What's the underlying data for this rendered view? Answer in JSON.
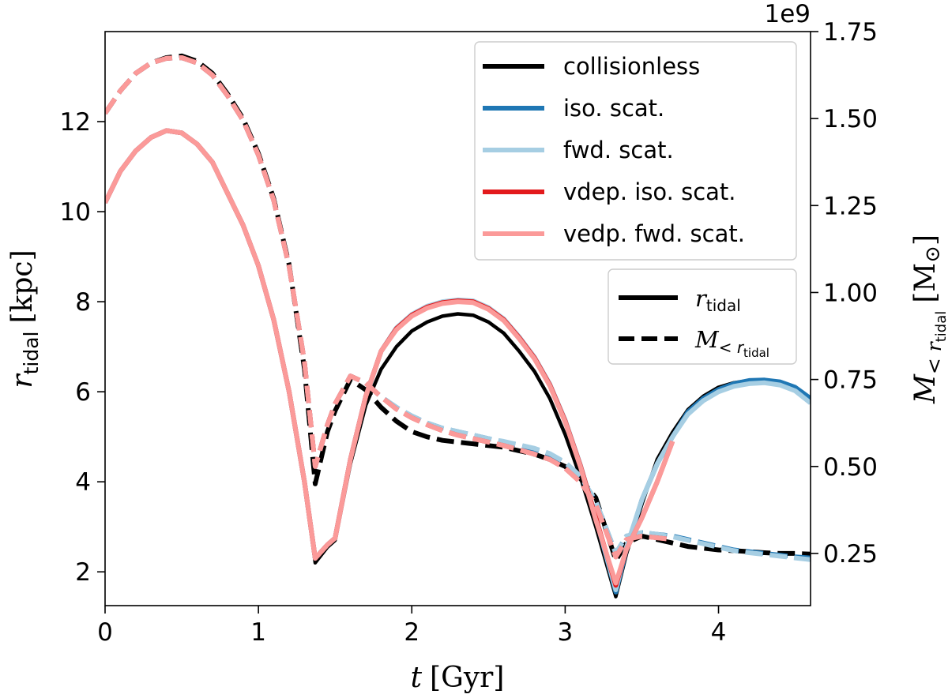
{
  "chart_data": {
    "type": "line",
    "xlabel": {
      "var": "t",
      "unit": "[Gyr]"
    },
    "ylabel_left": {
      "var": "r",
      "sub": "tidal",
      "unit": "[kpc]"
    },
    "ylabel_right": {
      "var": "M",
      "sub1": "< r",
      "sub2": "tidal",
      "unit_open": "[M",
      "unit_sym": "⊙",
      "unit_close": "]"
    },
    "xlim": [
      0,
      4.6
    ],
    "ylim_left": [
      1.25,
      14.0
    ],
    "ylim_right": [
      0.1,
      1.75
    ],
    "right_offset_text": "1e9",
    "x_ticks": [
      0,
      1,
      2,
      3,
      4
    ],
    "x_tick_labels": [
      "0",
      "1",
      "2",
      "3",
      "4"
    ],
    "y_left_ticks": [
      2,
      4,
      6,
      8,
      10,
      12
    ],
    "y_left_tick_labels": [
      "2",
      "4",
      "6",
      "8",
      "10",
      "12"
    ],
    "y_right_ticks": [
      0.25,
      0.5,
      0.75,
      1.0,
      1.25,
      1.5,
      1.75
    ],
    "y_right_tick_labels": [
      "0.25",
      "0.50",
      "0.75",
      "1.00",
      "1.25",
      "1.50",
      "1.75"
    ],
    "legend_models": [
      {
        "label": "collisionless",
        "color": "#000000"
      },
      {
        "label": "iso. scat.",
        "color": "#1f77b4"
      },
      {
        "label": "fwd. scat.",
        "color": "#a6cee3"
      },
      {
        "label": "vdep. iso. scat.",
        "color": "#e31a1c"
      },
      {
        "label": "vedp. fwd. scat.",
        "color": "#fb9a99"
      }
    ],
    "legend_styles": [
      {
        "label_var": "r",
        "label_sub": "tidal",
        "style": "solid"
      },
      {
        "label_var": "M",
        "label_sub1": "< r",
        "label_sub2": "tidal",
        "style": "dashed"
      }
    ],
    "series": [
      {
        "name": "collisionless r_tidal",
        "axis": "left",
        "style": "solid",
        "color": "#000000",
        "x": [
          0,
          0.1,
          0.2,
          0.3,
          0.4,
          0.5,
          0.6,
          0.7,
          0.8,
          0.9,
          1.0,
          1.1,
          1.2,
          1.3,
          1.37,
          1.45,
          1.5,
          1.6,
          1.7,
          1.8,
          1.9,
          2.0,
          2.1,
          2.2,
          2.3,
          2.4,
          2.5,
          2.6,
          2.7,
          2.8,
          2.9,
          3.0,
          3.1,
          3.2,
          3.33,
          3.4,
          3.5,
          3.6,
          3.7,
          3.8,
          3.9,
          4.0,
          4.1,
          4.2,
          4.3,
          4.4,
          4.5,
          4.6
        ],
        "y": [
          10.2,
          10.9,
          11.35,
          11.65,
          11.8,
          11.75,
          11.5,
          11.1,
          10.4,
          9.7,
          8.8,
          7.6,
          6.0,
          4.0,
          2.2,
          2.55,
          2.7,
          4.4,
          5.7,
          6.5,
          7.0,
          7.35,
          7.55,
          7.68,
          7.73,
          7.7,
          7.55,
          7.3,
          6.9,
          6.45,
          5.85,
          5.05,
          4.1,
          3.0,
          1.45,
          2.4,
          3.5,
          4.5,
          5.1,
          5.6,
          5.9,
          6.1,
          6.2,
          6.25,
          6.25,
          6.2,
          6.05,
          5.8
        ]
      },
      {
        "name": "collisionless M_<r_tidal",
        "axis": "right",
        "style": "dashed",
        "color": "#000000",
        "x": [
          0,
          0.1,
          0.2,
          0.3,
          0.4,
          0.5,
          0.6,
          0.7,
          0.8,
          0.9,
          1.0,
          1.1,
          1.2,
          1.3,
          1.37,
          1.45,
          1.5,
          1.6,
          1.7,
          1.8,
          1.9,
          2.0,
          2.1,
          2.2,
          2.3,
          2.4,
          2.5,
          2.6,
          2.7,
          2.8,
          2.9,
          3.0,
          3.1,
          3.2,
          3.33,
          3.4,
          3.5,
          3.6,
          3.7,
          3.8,
          3.9,
          4.0,
          4.1,
          4.2,
          4.3,
          4.4,
          4.5,
          4.6
        ],
        "y": [
          1.515,
          1.58,
          1.63,
          1.66,
          1.675,
          1.68,
          1.665,
          1.63,
          1.57,
          1.5,
          1.4,
          1.27,
          1.08,
          0.78,
          0.45,
          0.6,
          0.66,
          0.75,
          0.72,
          0.67,
          0.63,
          0.6,
          0.585,
          0.575,
          0.57,
          0.565,
          0.56,
          0.555,
          0.545,
          0.535,
          0.52,
          0.5,
          0.465,
          0.41,
          0.23,
          0.28,
          0.3,
          0.29,
          0.28,
          0.27,
          0.265,
          0.26,
          0.258,
          0.255,
          0.252,
          0.25,
          0.25,
          0.248
        ]
      },
      {
        "name": "iso. scat. r_tidal",
        "axis": "left",
        "style": "solid",
        "color": "#1f77b4",
        "x": [
          0,
          0.1,
          0.2,
          0.3,
          0.4,
          0.5,
          0.6,
          0.7,
          0.8,
          0.9,
          1.0,
          1.1,
          1.2,
          1.3,
          1.37,
          1.45,
          1.5,
          1.6,
          1.7,
          1.8,
          1.9,
          2.0,
          2.1,
          2.2,
          2.3,
          2.4,
          2.5,
          2.6,
          2.7,
          2.8,
          2.9,
          3.0,
          3.1,
          3.2,
          3.33,
          3.4,
          3.5,
          3.6,
          3.7,
          3.8,
          3.9,
          4.0,
          4.1,
          4.2,
          4.3,
          4.4,
          4.5,
          4.6
        ],
        "y": [
          10.2,
          10.9,
          11.35,
          11.65,
          11.8,
          11.75,
          11.5,
          11.1,
          10.4,
          9.7,
          8.8,
          7.6,
          6.0,
          4.0,
          2.3,
          2.6,
          2.75,
          4.5,
          5.9,
          6.9,
          7.4,
          7.7,
          7.88,
          7.98,
          8.02,
          8.0,
          7.85,
          7.6,
          7.2,
          6.75,
          6.15,
          5.35,
          4.35,
          3.2,
          1.55,
          2.5,
          3.6,
          4.4,
          5.0,
          5.55,
          5.85,
          6.05,
          6.18,
          6.25,
          6.26,
          6.22,
          6.1,
          5.85
        ]
      },
      {
        "name": "iso. scat. M_<r_tidal",
        "axis": "right",
        "style": "dashed",
        "color": "#1f77b4",
        "x": [
          0,
          0.1,
          0.2,
          0.3,
          0.4,
          0.5,
          0.6,
          0.7,
          0.8,
          0.9,
          1.0,
          1.1,
          1.2,
          1.3,
          1.37,
          1.45,
          1.5,
          1.6,
          1.7,
          1.8,
          1.9,
          2.0,
          2.1,
          2.2,
          2.3,
          2.4,
          2.5,
          2.6,
          2.7,
          2.8,
          2.9,
          3.0,
          3.1,
          3.2,
          3.33,
          3.4,
          3.5,
          3.6,
          3.7,
          3.8,
          3.9,
          4.0,
          4.1,
          4.2,
          4.3,
          4.4,
          4.5,
          4.6
        ],
        "y": [
          1.515,
          1.58,
          1.63,
          1.66,
          1.673,
          1.675,
          1.66,
          1.625,
          1.565,
          1.495,
          1.395,
          1.265,
          1.075,
          0.8,
          0.5,
          0.62,
          0.68,
          0.76,
          0.74,
          0.7,
          0.67,
          0.645,
          0.625,
          0.61,
          0.6,
          0.59,
          0.58,
          0.57,
          0.56,
          0.55,
          0.535,
          0.51,
          0.47,
          0.4,
          0.25,
          0.3,
          0.31,
          0.305,
          0.3,
          0.29,
          0.28,
          0.27,
          0.26,
          0.255,
          0.25,
          0.245,
          0.24,
          0.237
        ]
      },
      {
        "name": "fwd. scat. r_tidal",
        "axis": "left",
        "style": "solid",
        "color": "#a6cee3",
        "x": [
          0,
          0.1,
          0.2,
          0.3,
          0.4,
          0.5,
          0.6,
          0.7,
          0.8,
          0.9,
          1.0,
          1.1,
          1.2,
          1.3,
          1.37,
          1.45,
          1.5,
          1.6,
          1.7,
          1.8,
          1.9,
          2.0,
          2.1,
          2.2,
          2.3,
          2.4,
          2.5,
          2.6,
          2.7,
          2.8,
          2.9,
          3.0,
          3.1,
          3.2,
          3.33,
          3.4,
          3.5,
          3.6,
          3.7,
          3.8,
          3.9,
          4.0,
          4.1,
          4.2,
          4.3,
          4.4,
          4.5,
          4.6
        ],
        "y": [
          10.2,
          10.9,
          11.35,
          11.65,
          11.8,
          11.75,
          11.5,
          11.1,
          10.4,
          9.7,
          8.8,
          7.6,
          6.0,
          4.0,
          2.3,
          2.6,
          2.75,
          4.5,
          5.9,
          6.9,
          7.42,
          7.72,
          7.9,
          8.0,
          8.04,
          8.02,
          7.87,
          7.62,
          7.22,
          6.77,
          6.17,
          5.37,
          4.37,
          3.2,
          1.6,
          2.55,
          3.6,
          4.4,
          5.0,
          5.5,
          5.8,
          6.0,
          6.12,
          6.18,
          6.2,
          6.15,
          6.02,
          5.75
        ]
      },
      {
        "name": "fwd. scat. M_<r_tidal",
        "axis": "right",
        "style": "dashed",
        "color": "#a6cee3",
        "x": [
          0,
          0.1,
          0.2,
          0.3,
          0.4,
          0.5,
          0.6,
          0.7,
          0.8,
          0.9,
          1.0,
          1.1,
          1.2,
          1.3,
          1.37,
          1.45,
          1.5,
          1.6,
          1.7,
          1.8,
          1.9,
          2.0,
          2.1,
          2.2,
          2.3,
          2.4,
          2.5,
          2.6,
          2.7,
          2.8,
          2.9,
          3.0,
          3.1,
          3.2,
          3.33,
          3.4,
          3.5,
          3.6,
          3.7,
          3.8,
          3.9,
          4.0,
          4.1,
          4.2,
          4.3,
          4.4,
          4.5,
          4.6
        ],
        "y": [
          1.515,
          1.58,
          1.63,
          1.66,
          1.673,
          1.675,
          1.66,
          1.625,
          1.565,
          1.495,
          1.395,
          1.265,
          1.075,
          0.8,
          0.5,
          0.62,
          0.68,
          0.76,
          0.74,
          0.7,
          0.67,
          0.645,
          0.625,
          0.61,
          0.6,
          0.59,
          0.58,
          0.572,
          0.562,
          0.552,
          0.537,
          0.512,
          0.472,
          0.4,
          0.25,
          0.3,
          0.31,
          0.305,
          0.298,
          0.288,
          0.278,
          0.268,
          0.258,
          0.252,
          0.247,
          0.242,
          0.237,
          0.232
        ]
      },
      {
        "name": "vdep. iso. scat. r_tidal",
        "axis": "left",
        "style": "solid",
        "color": "#e31a1c",
        "x": [
          0,
          0.1,
          0.2,
          0.3,
          0.4,
          0.5,
          0.6,
          0.7,
          0.8,
          0.9,
          1.0,
          1.1,
          1.2,
          1.3,
          1.37,
          1.45,
          1.5,
          1.6,
          1.7,
          1.8,
          1.9,
          2.0,
          2.1,
          2.2,
          2.3,
          2.4,
          2.5,
          2.6,
          2.7,
          2.8,
          2.9,
          3.0,
          3.1,
          3.2,
          3.33,
          3.4,
          3.5,
          3.6,
          3.7
        ],
        "y": [
          10.2,
          10.9,
          11.35,
          11.65,
          11.8,
          11.75,
          11.5,
          11.1,
          10.4,
          9.7,
          8.8,
          7.6,
          6.0,
          4.0,
          2.3,
          2.6,
          2.75,
          4.5,
          5.9,
          6.9,
          7.4,
          7.7,
          7.88,
          7.98,
          8.02,
          8.0,
          7.85,
          7.6,
          7.2,
          6.75,
          6.15,
          5.35,
          4.35,
          3.2,
          1.7,
          2.5,
          3.2,
          4.0,
          4.9
        ]
      },
      {
        "name": "vdep. iso. scat. M_<r_tidal",
        "axis": "right",
        "style": "dashed",
        "color": "#e31a1c",
        "x": [
          0,
          0.1,
          0.2,
          0.3,
          0.4,
          0.5,
          0.6,
          0.7,
          0.8,
          0.9,
          1.0,
          1.1,
          1.2,
          1.3,
          1.37,
          1.45,
          1.5,
          1.6,
          1.7,
          1.8,
          1.9,
          2.0,
          2.1,
          2.2,
          2.3,
          2.4,
          2.5,
          2.6,
          2.7,
          2.8,
          2.9,
          3.0,
          3.1,
          3.2,
          3.33,
          3.4,
          3.5,
          3.6,
          3.7
        ],
        "y": [
          1.515,
          1.58,
          1.63,
          1.66,
          1.673,
          1.675,
          1.66,
          1.625,
          1.565,
          1.495,
          1.395,
          1.265,
          1.075,
          0.8,
          0.5,
          0.62,
          0.68,
          0.76,
          0.74,
          0.7,
          0.665,
          0.64,
          0.62,
          0.603,
          0.59,
          0.58,
          0.57,
          0.56,
          0.548,
          0.535,
          0.52,
          0.495,
          0.455,
          0.39,
          0.24,
          0.29,
          0.3,
          0.295,
          0.29
        ]
      },
      {
        "name": "vedp. fwd. scat. r_tidal",
        "axis": "left",
        "style": "solid",
        "color": "#fb9a99",
        "x": [
          0,
          0.1,
          0.2,
          0.3,
          0.4,
          0.5,
          0.6,
          0.7,
          0.8,
          0.9,
          1.0,
          1.1,
          1.2,
          1.3,
          1.37,
          1.45,
          1.5,
          1.6,
          1.7,
          1.8,
          1.9,
          2.0,
          2.1,
          2.2,
          2.3,
          2.4,
          2.5,
          2.6,
          2.7,
          2.8,
          2.9,
          3.0,
          3.1,
          3.2,
          3.33,
          3.4,
          3.5,
          3.6,
          3.7
        ],
        "y": [
          10.2,
          10.9,
          11.35,
          11.65,
          11.8,
          11.75,
          11.5,
          11.1,
          10.4,
          9.7,
          8.8,
          7.6,
          6.0,
          4.0,
          2.3,
          2.6,
          2.75,
          4.5,
          5.9,
          6.9,
          7.38,
          7.68,
          7.86,
          7.96,
          8.0,
          7.98,
          7.83,
          7.58,
          7.18,
          6.73,
          6.13,
          5.33,
          4.33,
          3.15,
          1.75,
          2.5,
          3.2,
          4.0,
          4.9
        ]
      },
      {
        "name": "vedp. fwd. scat. M_<r_tidal",
        "axis": "right",
        "style": "dashed",
        "color": "#fb9a99",
        "x": [
          0,
          0.1,
          0.2,
          0.3,
          0.4,
          0.5,
          0.6,
          0.7,
          0.8,
          0.9,
          1.0,
          1.1,
          1.2,
          1.3,
          1.37,
          1.45,
          1.5,
          1.6,
          1.7,
          1.8,
          1.9,
          2.0,
          2.1,
          2.2,
          2.3,
          2.4,
          2.5,
          2.6,
          2.7,
          2.8,
          2.9,
          3.0,
          3.1,
          3.2,
          3.33,
          3.4,
          3.5,
          3.6,
          3.7
        ],
        "y": [
          1.515,
          1.58,
          1.63,
          1.66,
          1.673,
          1.675,
          1.66,
          1.625,
          1.565,
          1.495,
          1.395,
          1.265,
          1.075,
          0.8,
          0.5,
          0.62,
          0.68,
          0.76,
          0.74,
          0.7,
          0.665,
          0.64,
          0.62,
          0.603,
          0.59,
          0.58,
          0.57,
          0.56,
          0.548,
          0.535,
          0.52,
          0.495,
          0.455,
          0.39,
          0.24,
          0.29,
          0.3,
          0.295,
          0.29
        ]
      }
    ]
  }
}
